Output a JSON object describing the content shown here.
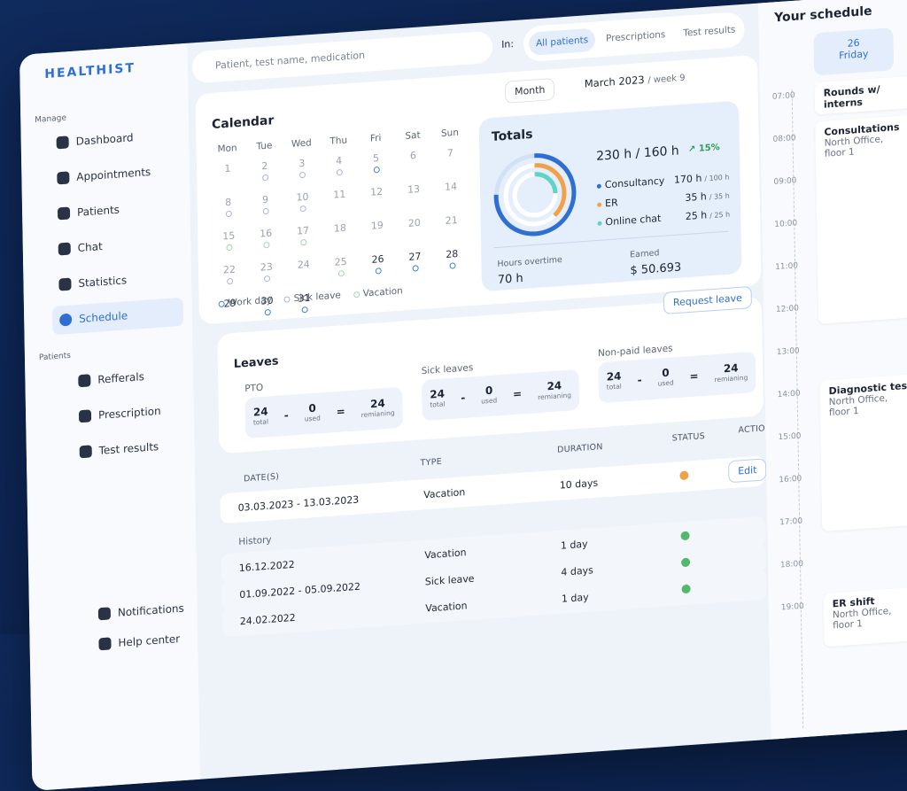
{
  "brand": "HEALTHIST",
  "search": {
    "placeholder": "Patient, test name, medication",
    "in_label": "In:",
    "tabs": [
      "All patients",
      "Prescriptions",
      "Test results"
    ]
  },
  "sidebar": {
    "manage_label": "Manage",
    "manage": [
      "Dashboard",
      "Appointments",
      "Patients",
      "Chat",
      "Statistics",
      "Schedule"
    ],
    "patients_label": "Patients",
    "patients": [
      "Refferals",
      "Prescription",
      "Test results"
    ],
    "bottom": [
      "Notifications",
      "Help center"
    ]
  },
  "calendar": {
    "title": "Calendar",
    "view": "Month",
    "period": "March 2023",
    "week": "/ week 9",
    "weekdays": [
      "Mon",
      "Tue",
      "Wed",
      "Thu",
      "Fri",
      "Sat",
      "Sun"
    ],
    "days": [
      "1",
      "2",
      "3",
      "4",
      "5",
      "6",
      "7",
      "8",
      "9",
      "10",
      "11",
      "12",
      "13",
      "14",
      "15",
      "16",
      "17",
      "18",
      "19",
      "20",
      "21",
      "22",
      "23",
      "24",
      "25",
      "26",
      "27",
      "28",
      "29",
      "30",
      "31"
    ],
    "legend": [
      "Work day",
      "Sick leave",
      "Vacation"
    ]
  },
  "totals": {
    "title": "Totals",
    "hours": "230 h / 160 h",
    "change": "15%",
    "items": [
      {
        "label": "Consultancy",
        "value": "170 h",
        "of": "/ 100 h"
      },
      {
        "label": "ER",
        "value": "35 h",
        "of": "/ 35 h"
      },
      {
        "label": "Online chat",
        "value": "25 h",
        "of": "/ 25 h"
      }
    ],
    "overtime_label": "Hours overtime",
    "overtime": "70 h",
    "earned_label": "Earned",
    "earned": "$ 50.693"
  },
  "leaves": {
    "title": "Leaves",
    "request": "Request leave",
    "groups": [
      {
        "name": "PTO",
        "total": "24",
        "total_label": "total",
        "used": "0",
        "used_label": "used",
        "remaining": "24",
        "remaining_label": "remianing"
      },
      {
        "name": "Sick leaves",
        "total": "24",
        "total_label": "total",
        "used": "0",
        "used_label": "used",
        "remaining": "24",
        "remaining_label": "remianing"
      },
      {
        "name": "Non-paid leaves",
        "total": "24",
        "total_label": "total",
        "used": "0",
        "used_label": "used",
        "remaining": "24",
        "remaining_label": "remianing"
      }
    ]
  },
  "table": {
    "headers": [
      "DATE(S)",
      "TYPE",
      "DURATION",
      "STATUS",
      "ACTIONS"
    ],
    "current": {
      "date": "03.03.2023 - 13.03.2023",
      "type": "Vacation",
      "duration": "10 days",
      "action": "Edit"
    },
    "history_label": "History",
    "history": [
      [
        "16.12.2022",
        "Vacation",
        "1 day"
      ],
      [
        "01.09.2022 - 05.09.2022",
        "Sick leave",
        "4 days"
      ],
      [
        "24.02.2022",
        "Vacation",
        "1 day"
      ]
    ]
  },
  "schedule": {
    "title": "Your schedule",
    "day_num": "26",
    "day_name": "Friday",
    "times": [
      "07:00",
      "08:00",
      "09:00",
      "10:00",
      "11:00",
      "12:00",
      "13:00",
      "14:00",
      "15:00",
      "16:00",
      "17:00",
      "18:00",
      "19:00"
    ],
    "events": [
      {
        "title": "Rounds w/ interns"
      },
      {
        "title": "Consultations",
        "place": "North Office, floor 1"
      },
      {
        "title": "Diagnostic test",
        "place": "North Office, floor 1"
      },
      {
        "title": "ER shift",
        "place": "North Office, floor 1"
      }
    ]
  }
}
